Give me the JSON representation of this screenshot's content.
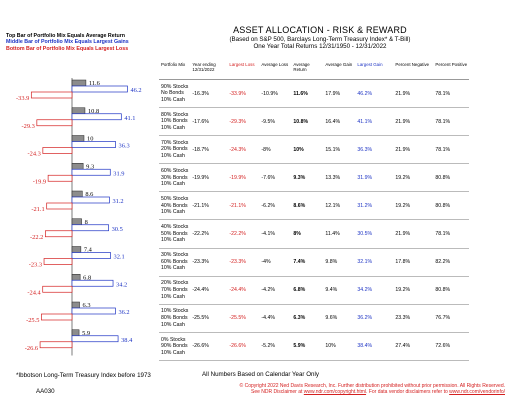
{
  "legend": {
    "line1": "Top Bar of Portfolio Mix Equals Average Return",
    "line2": "Middle Bar of Portfolio Mix Equals Largest Gains",
    "line3": "Bottom Bar of Portfolio Mix Equals Largest Loss"
  },
  "header": {
    "title": "ASSET ALLOCATION - RISK & REWARD",
    "subtitle": "(Based on S&P 500, Barclays Long-Term Treasury Index* & T-Bill)",
    "period": "One Year Total Returns  12/31/1950 - 12/31/2022"
  },
  "columns": {
    "mix": "Portfolio Mix",
    "ytd": "Year ending 12/31/2022",
    "largest_loss": "Largest Loss",
    "avg_loss": "Average Loss",
    "avg_return": "Average Return",
    "avg_gain": "Average Gain",
    "largest_gain": "Largest Gain",
    "pct_neg": "Percent Negative",
    "pct_pos": "Percent Positive"
  },
  "colors": {
    "red": "#d42020",
    "blue": "#1d33c4",
    "gray": "#8a8a8a"
  },
  "chart_data": {
    "type": "bar",
    "categories": [
      "90/0/10",
      "80/10/10",
      "70/20/10",
      "60/30/10",
      "50/40/10",
      "40/50/10",
      "30/60/10",
      "20/70/10",
      "10/80/10",
      "0/90/10"
    ],
    "series": [
      {
        "name": "Average Return",
        "values": [
          11.6,
          10.8,
          10,
          9.3,
          8.6,
          8,
          7.4,
          6.8,
          6.3,
          5.9
        ]
      },
      {
        "name": "Largest Gain",
        "values": [
          46.2,
          41.1,
          36.3,
          31.9,
          31.2,
          30.5,
          32.1,
          34.2,
          36.2,
          38.4
        ]
      },
      {
        "name": "Largest Loss",
        "values": [
          -33.9,
          -29.3,
          -24.3,
          -19.9,
          -21.1,
          -22.2,
          -23.3,
          -24.4,
          -25.5,
          -26.6
        ]
      }
    ],
    "labels_avg": [
      "11.6",
      "10.8",
      "10",
      "9.3",
      "8.6",
      "8",
      "7.4",
      "6.8",
      "6.3",
      "5.9"
    ],
    "labels_gain": [
      "46.2",
      "41.1",
      "36.3",
      "31.9",
      "31.2",
      "30.5",
      "32.1",
      "34.2",
      "36.2",
      "38.4"
    ],
    "labels_loss": [
      "-33.9",
      "-29.3",
      "-24.3",
      "-19.9",
      "-21.1",
      "-22.2",
      "-23.3",
      "-24.4",
      "-25.5",
      "-26.6"
    ]
  },
  "rows": [
    {
      "mix": [
        "90% Stocks",
        "No Bonds",
        "10% Cash"
      ],
      "ytd": "-16.3%",
      "ll": "-33.9%",
      "al": "-10.9%",
      "ar": "11.6%",
      "ag": "17.9%",
      "lg": "46.2%",
      "pn": "21.9%",
      "pp": "78.1%"
    },
    {
      "mix": [
        "80% Stocks",
        "10% Bonds",
        "10% Cash"
      ],
      "ytd": "-17.6%",
      "ll": "-29.3%",
      "al": "-9.5%",
      "ar": "10.8%",
      "ag": "16.4%",
      "lg": "41.1%",
      "pn": "21.9%",
      "pp": "78.1%"
    },
    {
      "mix": [
        "70% Stocks",
        "20% Bonds",
        "10% Cash"
      ],
      "ytd": "-18.7%",
      "ll": "-24.3%",
      "al": "-8%",
      "ar": "10%",
      "ag": "15.1%",
      "lg": "36.3%",
      "pn": "21.9%",
      "pp": "78.1%"
    },
    {
      "mix": [
        "60% Stocks",
        "30% Bonds",
        "10% Cash"
      ],
      "ytd": "-19.9%",
      "ll": "-19.9%",
      "al": "-7.6%",
      "ar": "9.3%",
      "ag": "13.3%",
      "lg": "31.9%",
      "pn": "19.2%",
      "pp": "80.8%"
    },
    {
      "mix": [
        "50% Stocks",
        "40% Bonds",
        "10% Cash"
      ],
      "ytd": "-21.1%",
      "ll": "-21.1%",
      "al": "-6.2%",
      "ar": "8.6%",
      "ag": "12.1%",
      "lg": "31.2%",
      "pn": "19.2%",
      "pp": "80.8%"
    },
    {
      "mix": [
        "40% Stocks",
        "50% Bonds",
        "10% Cash"
      ],
      "ytd": "-22.2%",
      "ll": "-22.2%",
      "al": "-4.1%",
      "ar": "8%",
      "ag": "11.4%",
      "lg": "30.5%",
      "pn": "21.9%",
      "pp": "78.1%"
    },
    {
      "mix": [
        "30% Stocks",
        "60% Bonds",
        "10% Cash"
      ],
      "ytd": "-23.3%",
      "ll": "-23.3%",
      "al": "-4%",
      "ar": "7.4%",
      "ag": "9.8%",
      "lg": "32.1%",
      "pn": "17.8%",
      "pp": "82.2%"
    },
    {
      "mix": [
        "20% Stocks",
        "70% Bonds",
        "10% Cash"
      ],
      "ytd": "-24.4%",
      "ll": "-24.4%",
      "al": "-4.2%",
      "ar": "6.8%",
      "ag": "9.4%",
      "lg": "34.2%",
      "pn": "19.2%",
      "pp": "80.8%"
    },
    {
      "mix": [
        "10% Stocks",
        "80% Bonds",
        "10% Cash"
      ],
      "ytd": "-25.5%",
      "ll": "-25.5%",
      "al": "-4.4%",
      "ar": "6.3%",
      "ag": "9.6%",
      "lg": "36.2%",
      "pn": "23.3%",
      "pp": "76.7%"
    },
    {
      "mix": [
        "0% Stocks",
        "90% Bonds",
        "10% Cash"
      ],
      "ytd": "-26.6%",
      "ll": "-26.6%",
      "al": "-5.2%",
      "ar": "5.9%",
      "ag": "10%",
      "lg": "38.4%",
      "pn": "27.4%",
      "pp": "72.6%"
    }
  ],
  "footer": {
    "note": "All Numbers Based on Calendar Year Only",
    "ibbotson": "*Ibbotson  Long-Term Treasury Index before 1973",
    "code": "AA030",
    "copy1": "© Copyright 2022 Ned Davis Research, Inc.  Further distribution prohibited without prior permission.  All Rights Reserved.",
    "copy2_a": "See NDR Disclaimer at ",
    "copy2_link1": "www.ndr.com/copyright.html",
    "copy2_b": ".  For data vendor disclaimers refer to ",
    "copy2_link2": "www.ndr.com/vendorinfo/"
  }
}
